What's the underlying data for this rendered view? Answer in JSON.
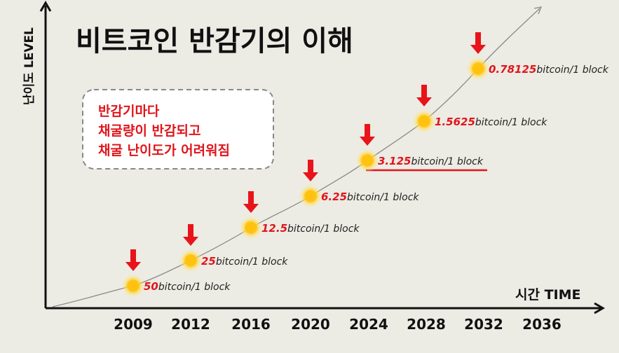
{
  "header": {
    "title": "비트코인 반감기의 이해"
  },
  "axes": {
    "y_label": "난이도 LEVEL",
    "x_label": "시간 TIME"
  },
  "callout": {
    "lines": [
      "반감기마다",
      "채굴량이 반감되고",
      "채굴 난이도가 어려워짐"
    ]
  },
  "x_labels": [
    "2009",
    "2012",
    "2016",
    "2020",
    "2024",
    "2028",
    "2032",
    "2036"
  ],
  "points": [
    {
      "reward": "50",
      "unit": "bitcoin/1 block"
    },
    {
      "reward": "25",
      "unit": "bitcoin/1 block"
    },
    {
      "reward": "12.5",
      "unit": "bitcoin/1 block"
    },
    {
      "reward": "6.25",
      "unit": "bitcoin/1 block"
    },
    {
      "reward": "3.125",
      "unit": "bitcoin/1 block"
    },
    {
      "reward": "1.5625",
      "unit": "bitcoin/1 block"
    },
    {
      "reward": "0.78125",
      "unit": "bitcoin/1 block"
    }
  ]
}
